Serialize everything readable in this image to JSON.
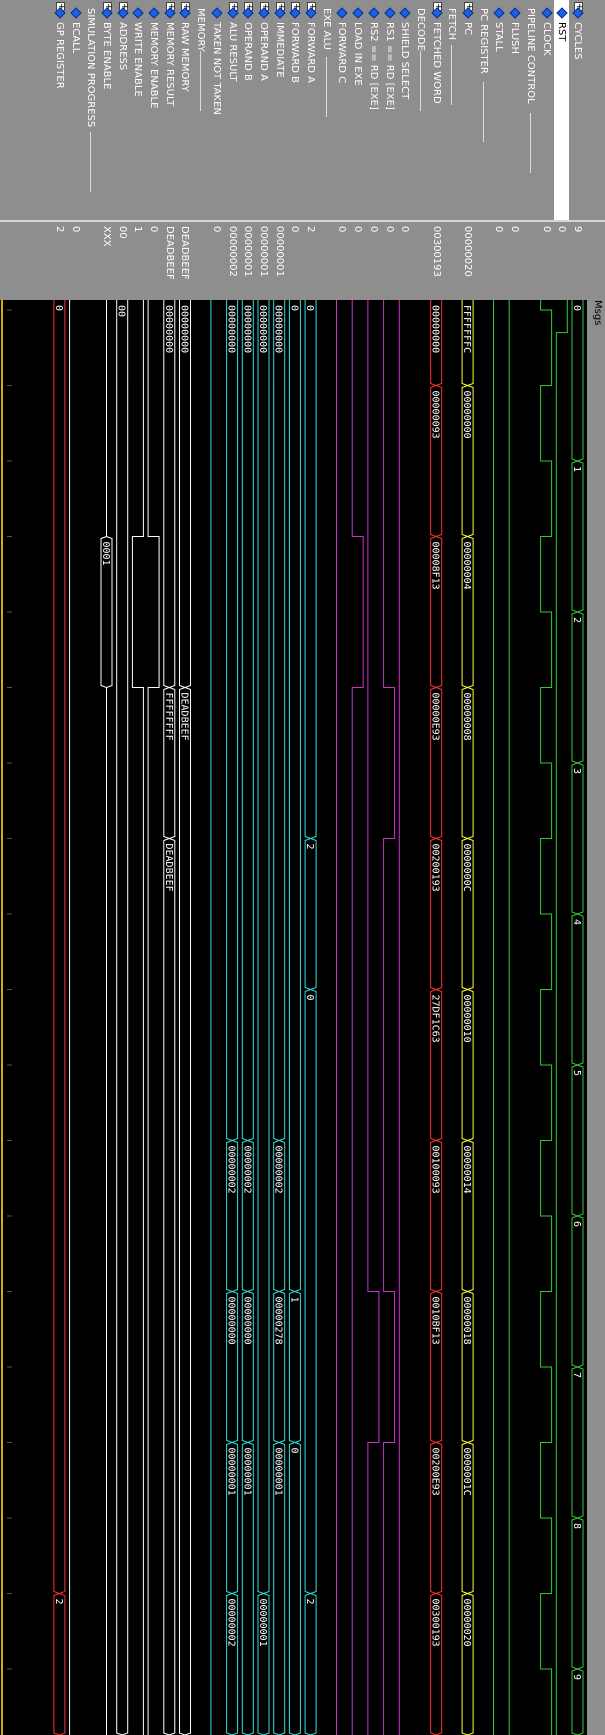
{
  "toolbar": {
    "logo_icon": "simulator-logo-icon",
    "msgs_label": "Msgs"
  },
  "signals": [
    {
      "name": "CYCLES",
      "value": "9",
      "kind": "bus",
      "color": "#33cc33",
      "expand": true,
      "segments": [
        [
          0,
          "0"
        ],
        [
          1,
          "1"
        ],
        [
          2,
          "2"
        ],
        [
          3,
          "3"
        ],
        [
          4,
          "4"
        ],
        [
          5,
          "5"
        ],
        [
          6,
          "6"
        ],
        [
          7,
          "7"
        ],
        [
          8,
          "8"
        ],
        [
          9,
          "9"
        ]
      ]
    },
    {
      "name": "RST",
      "value": "0",
      "kind": "bit",
      "color": "#33cc33",
      "selected": true,
      "bits": [
        [
          0,
          1
        ],
        [
          0.15,
          0
        ]
      ]
    },
    {
      "name": "CLOCK",
      "value": "0",
      "kind": "clock",
      "color": "#33cc33"
    },
    {
      "name": "PIPELINE CONTROL",
      "header": true
    },
    {
      "name": "FLUSH",
      "value": "0",
      "kind": "bit",
      "color": "#33cc33",
      "bits": [
        [
          0,
          0
        ]
      ]
    },
    {
      "name": "STALL",
      "value": "0",
      "kind": "bit",
      "color": "#33cc33",
      "bits": [
        [
          0,
          0
        ]
      ]
    },
    {
      "name": "PC REGISTER",
      "header": true
    },
    {
      "name": "PC",
      "value": "00000020",
      "kind": "bus",
      "color": "#ffff33",
      "expand": true,
      "segments": [
        [
          0,
          "FFFFFFFC"
        ],
        [
          0.5,
          "00000000"
        ],
        [
          1.5,
          "00000004"
        ],
        [
          2.5,
          "00000008"
        ],
        [
          3.5,
          "0000000C"
        ],
        [
          4.5,
          "00000010"
        ],
        [
          5.5,
          "00000014"
        ],
        [
          6.5,
          "00000018"
        ],
        [
          7.5,
          "0000001C"
        ],
        [
          8.5,
          "00000020"
        ]
      ]
    },
    {
      "name": "FETCH",
      "header": true
    },
    {
      "name": "FETCHED WORD",
      "value": "00300193",
      "kind": "bus",
      "color": "#ff3333",
      "expand": true,
      "segments": [
        [
          0,
          "00000000"
        ],
        [
          0.5,
          "00000093"
        ],
        [
          1.5,
          "00008F13"
        ],
        [
          2.5,
          "00000E93"
        ],
        [
          3.5,
          "00200193"
        ],
        [
          4.5,
          "27DF1C63"
        ],
        [
          5.5,
          "00100093"
        ],
        [
          6.5,
          "0010BF13"
        ],
        [
          7.5,
          "00200E93"
        ],
        [
          8.5,
          "00300193"
        ]
      ]
    },
    {
      "name": "DECODE",
      "header": true
    },
    {
      "name": "SHIELD SELECT",
      "value": "0",
      "kind": "bit",
      "color": "#cc33cc",
      "bits": [
        [
          0,
          0
        ]
      ]
    },
    {
      "name": "RS1 == RD [EXE]",
      "value": "0",
      "kind": "bit",
      "color": "#cc33cc",
      "bits": [
        [
          0,
          0
        ],
        [
          2.5,
          1
        ],
        [
          3.5,
          0
        ],
        [
          6.5,
          1
        ],
        [
          7.5,
          0
        ]
      ]
    },
    {
      "name": "RS2 == RD [EXE]",
      "value": "0",
      "kind": "bit",
      "color": "#cc33cc",
      "bits": [
        [
          0,
          0
        ],
        [
          6.5,
          1
        ],
        [
          7.5,
          0
        ]
      ]
    },
    {
      "name": "LOAD IN EXE",
      "value": "0",
      "kind": "bit",
      "color": "#cc33cc",
      "bits": [
        [
          0,
          0
        ],
        [
          1.5,
          1
        ],
        [
          2.5,
          0
        ]
      ]
    },
    {
      "name": "FORWARD C",
      "value": "0",
      "kind": "bit",
      "color": "#cc33cc",
      "bits": [
        [
          0,
          0
        ]
      ]
    },
    {
      "name": "EXE ALU",
      "header": true
    },
    {
      "name": "FORWARD A",
      "value": "2",
      "kind": "bus",
      "color": "#33dddd",
      "expand": true,
      "segments": [
        [
          0,
          "0"
        ],
        [
          3.5,
          "2"
        ],
        [
          4.5,
          "0"
        ],
        [
          8.5,
          "2"
        ]
      ]
    },
    {
      "name": "FORWARD B",
      "value": "0",
      "kind": "bus",
      "color": "#33dddd",
      "expand": true,
      "segments": [
        [
          0,
          "0"
        ],
        [
          6.5,
          "1"
        ],
        [
          7.5,
          "0"
        ]
      ]
    },
    {
      "name": "IMMEDIATE",
      "value": "00000001",
      "kind": "bus",
      "color": "#33dddd",
      "expand": true,
      "segments": [
        [
          0,
          "00000000"
        ],
        [
          5.5,
          "00000002"
        ],
        [
          6.5,
          "00000278"
        ],
        [
          7.5,
          "00000001"
        ]
      ]
    },
    {
      "name": "OPERAND A",
      "value": "00000001",
      "kind": "bus",
      "color": "#33dddd",
      "expand": true,
      "segments": [
        [
          0,
          "00000000"
        ],
        [
          8.5,
          "00000001"
        ]
      ]
    },
    {
      "name": "OPERAND B",
      "value": "00000001",
      "kind": "bus",
      "color": "#33dddd",
      "expand": true,
      "segments": [
        [
          0,
          "00000000"
        ],
        [
          5.5,
          "00000002"
        ],
        [
          6.5,
          "00000000"
        ],
        [
          7.5,
          "00000001"
        ]
      ]
    },
    {
      "name": "ALU RESULT",
      "value": "00000002",
      "kind": "bus",
      "color": "#33dddd",
      "expand": true,
      "segments": [
        [
          0,
          "00000000"
        ],
        [
          5.5,
          "00000002"
        ],
        [
          6.5,
          "00000000"
        ],
        [
          7.5,
          "00000001"
        ],
        [
          8.5,
          "00000002"
        ]
      ]
    },
    {
      "name": "TAKEN NOT TAKEN",
      "value": "0",
      "kind": "bit",
      "color": "#33dddd",
      "bits": [
        [
          0,
          0
        ]
      ]
    },
    {
      "name": "MEMORY",
      "header": true
    },
    {
      "name": "RAW MEMORY",
      "value": "DEADBEEF",
      "kind": "bus",
      "color": "#ffffff",
      "expand": true,
      "segments": [
        [
          0,
          "00000000"
        ],
        [
          2.5,
          "DEADBEEF"
        ]
      ]
    },
    {
      "name": "MEMORY RESULT",
      "value": "DEADBEEF",
      "kind": "bus",
      "color": "#ffffff",
      "expand": true,
      "segments": [
        [
          0,
          "00000000"
        ],
        [
          2.5,
          "FFFFFFFF"
        ],
        [
          3.5,
          "DEADBEEF"
        ]
      ]
    },
    {
      "name": "MEMORY ENABLE",
      "value": "0",
      "kind": "bit",
      "color": "#ffffff",
      "bits": [
        [
          0,
          0
        ],
        [
          1.5,
          1
        ],
        [
          2.5,
          0
        ]
      ]
    },
    {
      "name": "WRITE ENABLE",
      "value": "1",
      "kind": "bit",
      "color": "#ffffff",
      "bits": [
        [
          0,
          1
        ],
        [
          1.5,
          0
        ],
        [
          2.5,
          1
        ]
      ]
    },
    {
      "name": "ADDRESS",
      "value": "00",
      "kind": "bus",
      "color": "#ffffff",
      "expand": true,
      "segments": [
        [
          0,
          "00"
        ]
      ]
    },
    {
      "name": "BYTE ENABLE",
      "value": "XXX",
      "kind": "bus",
      "color": "#ffffff",
      "expand": true,
      "segments": [
        [
          0,
          ""
        ],
        [
          1.5,
          "0001"
        ],
        [
          2.5,
          ""
        ]
      ]
    },
    {
      "name": "SIMULATION PROGRESS",
      "header": true
    },
    {
      "name": "ECALL",
      "value": "0",
      "kind": "bit",
      "color": "#ffffff",
      "bits": [
        [
          0,
          0
        ]
      ]
    },
    {
      "name": "GP REGISTER",
      "value": "2",
      "kind": "bus",
      "color": "#ff3333",
      "expand": true,
      "segments": [
        [
          0,
          "0"
        ],
        [
          8.5,
          "2"
        ]
      ]
    }
  ]
}
